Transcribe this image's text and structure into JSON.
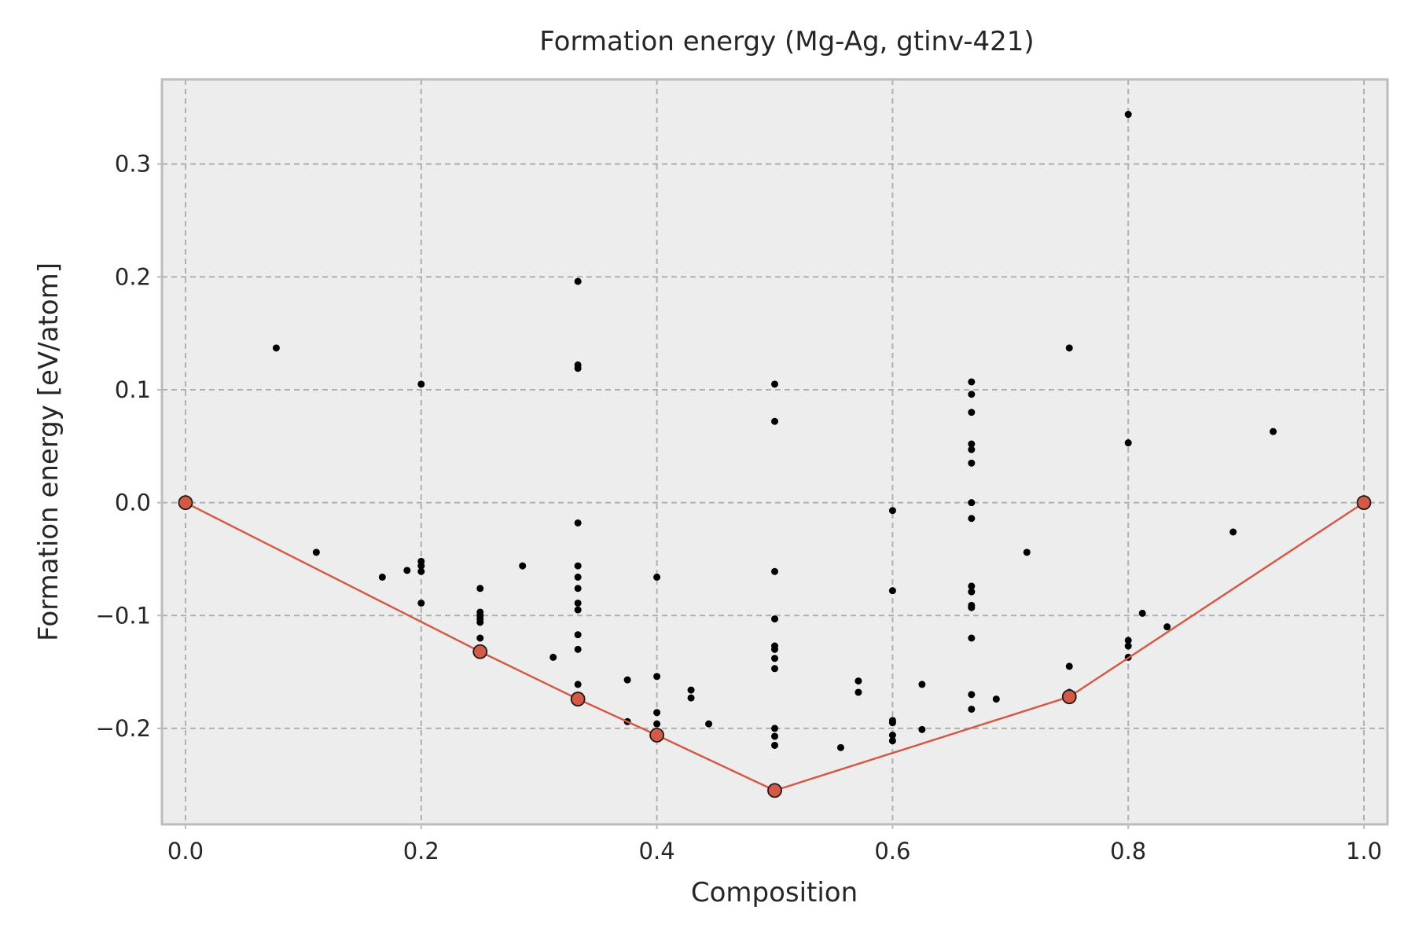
{
  "chart_data": {
    "type": "scatter",
    "title": "Formation energy (Mg-Ag, gtinv-421)",
    "xlabel": "Composition",
    "ylabel": "Formation energy [eV/atom]",
    "xlim": [
      -0.02,
      1.02
    ],
    "ylim": [
      -0.285,
      0.375
    ],
    "grid": true,
    "xticks": [
      0.0,
      0.2,
      0.4,
      0.6,
      0.8,
      1.0
    ],
    "xtick_labels": [
      "0.0",
      "0.2",
      "0.4",
      "0.6",
      "0.8",
      "1.0"
    ],
    "yticks": [
      0.3,
      0.2,
      0.1,
      0.0,
      -0.1,
      -0.2
    ],
    "ytick_labels": [
      "0.3",
      "0.2",
      "0.1",
      "0.0",
      "−0.1",
      "−0.2"
    ],
    "colors": {
      "background": "#ededed",
      "grid": "#b0b0b0",
      "spine": "#bcbcbc",
      "points": "#000000",
      "hull": "#d45a48"
    },
    "series": [
      {
        "values": [
          [
            0.077,
            0.137
          ],
          [
            0.111,
            -0.044
          ],
          [
            0.167,
            -0.066
          ],
          [
            0.188,
            -0.06
          ],
          [
            0.2,
            0.105
          ],
          [
            0.2,
            -0.052
          ],
          [
            0.2,
            -0.056
          ],
          [
            0.2,
            -0.061
          ],
          [
            0.2,
            -0.089
          ],
          [
            0.25,
            -0.076
          ],
          [
            0.25,
            -0.097
          ],
          [
            0.25,
            -0.1
          ],
          [
            0.25,
            -0.103
          ],
          [
            0.25,
            -0.106
          ],
          [
            0.25,
            -0.12
          ],
          [
            0.286,
            -0.056
          ],
          [
            0.312,
            -0.137
          ],
          [
            0.333,
            0.196
          ],
          [
            0.333,
            0.122
          ],
          [
            0.333,
            0.119
          ],
          [
            0.333,
            -0.018
          ],
          [
            0.333,
            -0.056
          ],
          [
            0.333,
            -0.066
          ],
          [
            0.333,
            -0.076
          ],
          [
            0.333,
            -0.089
          ],
          [
            0.333,
            -0.095
          ],
          [
            0.333,
            -0.117
          ],
          [
            0.333,
            -0.13
          ],
          [
            0.333,
            -0.161
          ],
          [
            0.375,
            -0.157
          ],
          [
            0.375,
            -0.194
          ],
          [
            0.4,
            -0.066
          ],
          [
            0.4,
            -0.154
          ],
          [
            0.4,
            -0.186
          ],
          [
            0.4,
            -0.196
          ],
          [
            0.429,
            -0.166
          ],
          [
            0.429,
            -0.173
          ],
          [
            0.444,
            -0.196
          ],
          [
            0.5,
            0.105
          ],
          [
            0.5,
            0.072
          ],
          [
            0.5,
            -0.061
          ],
          [
            0.5,
            -0.103
          ],
          [
            0.5,
            -0.127
          ],
          [
            0.5,
            -0.13
          ],
          [
            0.5,
            -0.138
          ],
          [
            0.5,
            -0.147
          ],
          [
            0.5,
            -0.2
          ],
          [
            0.5,
            -0.207
          ],
          [
            0.5,
            -0.215
          ],
          [
            0.556,
            -0.217
          ],
          [
            0.571,
            -0.158
          ],
          [
            0.571,
            -0.168
          ],
          [
            0.6,
            -0.007
          ],
          [
            0.6,
            -0.078
          ],
          [
            0.6,
            -0.193
          ],
          [
            0.6,
            -0.195
          ],
          [
            0.6,
            -0.206
          ],
          [
            0.6,
            -0.211
          ],
          [
            0.625,
            -0.161
          ],
          [
            0.625,
            -0.201
          ],
          [
            0.667,
            0.107
          ],
          [
            0.667,
            0.096
          ],
          [
            0.667,
            0.08
          ],
          [
            0.667,
            0.052
          ],
          [
            0.667,
            0.047
          ],
          [
            0.667,
            0.035
          ],
          [
            0.667,
            0.0
          ],
          [
            0.667,
            -0.014
          ],
          [
            0.667,
            -0.074
          ],
          [
            0.667,
            -0.079
          ],
          [
            0.667,
            -0.091
          ],
          [
            0.667,
            -0.093
          ],
          [
            0.667,
            -0.12
          ],
          [
            0.667,
            -0.17
          ],
          [
            0.667,
            -0.183
          ],
          [
            0.688,
            -0.174
          ],
          [
            0.714,
            -0.044
          ],
          [
            0.75,
            0.137
          ],
          [
            0.75,
            -0.145
          ],
          [
            0.75,
            -0.168
          ],
          [
            0.8,
            0.344
          ],
          [
            0.8,
            0.053
          ],
          [
            0.8,
            -0.122
          ],
          [
            0.8,
            -0.127
          ],
          [
            0.8,
            -0.137
          ],
          [
            0.812,
            -0.098
          ],
          [
            0.833,
            -0.11
          ],
          [
            0.889,
            -0.026
          ],
          [
            0.923,
            0.063
          ]
        ]
      },
      {
        "type": "line",
        "values": [
          [
            0.0,
            0.0
          ],
          [
            0.25,
            -0.132
          ],
          [
            0.333,
            -0.174
          ],
          [
            0.4,
            -0.206
          ],
          [
            0.5,
            -0.255
          ],
          [
            0.75,
            -0.172
          ],
          [
            1.0,
            0.0
          ]
        ]
      }
    ]
  }
}
